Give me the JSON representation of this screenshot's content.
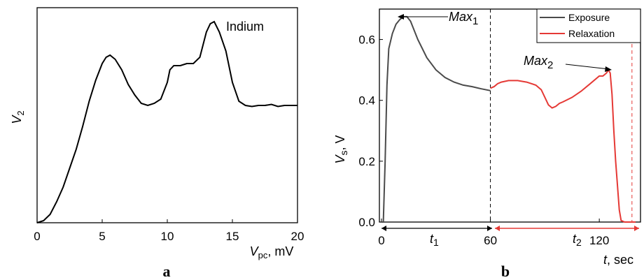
{
  "chart_data": [
    {
      "type": "line",
      "panel": "a",
      "annotation": "Indium",
      "ylabel": "V",
      "ylabel_sub": "2",
      "xlabel": "V",
      "xlabel_sub": "pc",
      "xlabel_unit": ", mV",
      "xlim": [
        0,
        20
      ],
      "ylim": [
        0,
        1
      ],
      "y_ticks_shown": false,
      "x_ticks": [
        0,
        5,
        10,
        15,
        20
      ],
      "grid": false,
      "series": [
        {
          "color": "#000000",
          "x": [
            0,
            0.5,
            1,
            1.5,
            2,
            2.5,
            3,
            3.5,
            4,
            4.5,
            5,
            5.3,
            5.6,
            6,
            6.5,
            7,
            7.5,
            8,
            8.5,
            9,
            9.5,
            10,
            10.2,
            10.5,
            11,
            11.5,
            12,
            12.5,
            13,
            13.3,
            13.6,
            14,
            14.5,
            15,
            15.5,
            16,
            16.5,
            17,
            17.5,
            18,
            18.5,
            19,
            19.5,
            20
          ],
          "y": [
            0,
            0.01,
            0.04,
            0.1,
            0.17,
            0.26,
            0.35,
            0.46,
            0.58,
            0.68,
            0.76,
            0.79,
            0.8,
            0.78,
            0.73,
            0.66,
            0.61,
            0.57,
            0.56,
            0.57,
            0.59,
            0.67,
            0.73,
            0.75,
            0.75,
            0.76,
            0.76,
            0.79,
            0.91,
            0.95,
            0.96,
            0.91,
            0.82,
            0.67,
            0.58,
            0.56,
            0.555,
            0.56,
            0.56,
            0.565,
            0.555,
            0.56,
            0.56,
            0.56
          ]
        }
      ]
    },
    {
      "type": "line",
      "panel": "b",
      "ylabel": "V",
      "ylabel_sub": "s",
      "ylabel_unit": ", V",
      "xlabel": "t",
      "xlabel_unit": ", sec",
      "xlim": [
        0,
        140
      ],
      "ylim": [
        0,
        0.7
      ],
      "x_ticks": [
        0,
        60,
        120
      ],
      "y_ticks": [
        0.0,
        0.2,
        0.4,
        0.6
      ],
      "y_tick_labels": [
        "0.0",
        "0.2",
        "0.4",
        "0.6"
      ],
      "grid": false,
      "legend_position": "top-right",
      "vlines": [
        60,
        138
      ],
      "annotations": [
        {
          "text": "Max",
          "sub": "1"
        },
        {
          "text": "Max",
          "sub": "2"
        },
        {
          "text": "t",
          "sub": "1"
        },
        {
          "text": "t",
          "sub": "2"
        }
      ],
      "series": [
        {
          "name": "Exposure",
          "color": "#4a4a4a",
          "x": [
            0,
            1,
            2,
            3,
            4,
            6,
            8,
            10,
            12,
            14,
            16,
            20,
            25,
            30,
            35,
            40,
            45,
            50,
            55,
            60
          ],
          "y": [
            0,
            0.0,
            0.2,
            0.45,
            0.57,
            0.62,
            0.65,
            0.665,
            0.675,
            0.675,
            0.66,
            0.6,
            0.54,
            0.5,
            0.475,
            0.46,
            0.45,
            0.445,
            0.438,
            0.432
          ]
        },
        {
          "name": "Relaxation",
          "color": "#e53935",
          "x": [
            60,
            62,
            64,
            66,
            70,
            75,
            80,
            85,
            88,
            90,
            92,
            94,
            96,
            98,
            100,
            105,
            110,
            115,
            120,
            122,
            124,
            125,
            126,
            127,
            128,
            129,
            130,
            131,
            132,
            134,
            136,
            138,
            140
          ],
          "y": [
            0.44,
            0.445,
            0.455,
            0.46,
            0.465,
            0.465,
            0.46,
            0.45,
            0.435,
            0.41,
            0.385,
            0.375,
            0.38,
            0.39,
            0.395,
            0.41,
            0.43,
            0.455,
            0.48,
            0.48,
            0.49,
            0.5,
            0.49,
            0.42,
            0.3,
            0.2,
            0.12,
            0.04,
            0.005,
            0.0,
            0.0,
            0.0,
            0.0
          ]
        }
      ]
    }
  ],
  "panel_letters": {
    "a": "a",
    "b": "b"
  }
}
